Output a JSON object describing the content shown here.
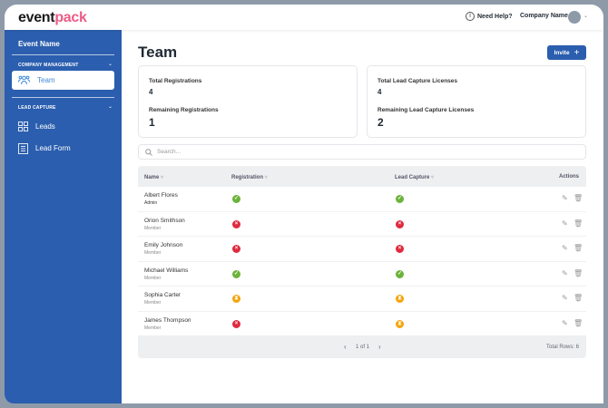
{
  "header": {
    "logo_left": "event",
    "logo_right": "pack",
    "help": "Need Help?",
    "company": "Company Name"
  },
  "sidebar": {
    "event_name": "Event Name",
    "sections": [
      {
        "label": "COMPANY MANAGEMENT",
        "items": [
          {
            "label": "Team",
            "icon": "users-icon",
            "active": true
          }
        ]
      },
      {
        "label": "LEAD CAPTURE",
        "items": [
          {
            "label": "Leads",
            "icon": "grid-icon"
          },
          {
            "label": "Lead Form",
            "icon": "form-icon"
          }
        ]
      }
    ]
  },
  "main": {
    "title": "Team",
    "invite": "Invite",
    "cards": [
      {
        "total_label": "Total Registrations",
        "total": "4",
        "remaining_label": "Remaining Registrations",
        "remaining": "1"
      },
      {
        "total_label": "Total Lead Capture Licenses",
        "total": "4",
        "remaining_label": "Remaining Lead Capture Licenses",
        "remaining": "2"
      }
    ],
    "search_placeholder": "Search...",
    "table": {
      "columns": [
        "Name",
        "Registration",
        "Lead Capture",
        "Actions"
      ],
      "rows": [
        {
          "name": "Albert Flores",
          "role": "Admin",
          "registration": "ok",
          "lead_capture": "ok"
        },
        {
          "name": "Orion Smithson",
          "role": "Member",
          "registration": "no",
          "lead_capture": "no"
        },
        {
          "name": "Emily Johnson",
          "role": "Member",
          "registration": "no",
          "lead_capture": "no"
        },
        {
          "name": "Michael Williams",
          "role": "Member",
          "registration": "ok",
          "lead_capture": "ok"
        },
        {
          "name": "Sophia Carter",
          "role": "Member",
          "registration": "pend",
          "lead_capture": "pend"
        },
        {
          "name": "James Thompson",
          "role": "Member",
          "registration": "no",
          "lead_capture": "pend"
        }
      ],
      "page": "1 of 1",
      "total_rows": "Total Rows: 6"
    }
  },
  "colors": {
    "brand_blue": "#2b5eae",
    "brand_pink": "#ec5c86",
    "ok": "#6bb33a",
    "error": "#df2b3f",
    "pending": "#f5a40c"
  }
}
